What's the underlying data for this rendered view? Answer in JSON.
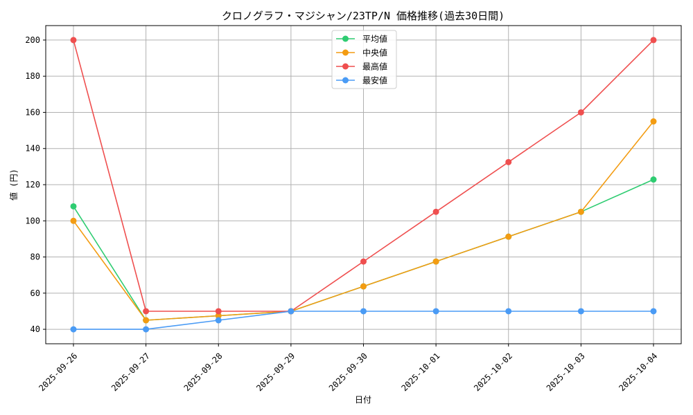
{
  "chart_data": {
    "type": "line",
    "title": "クロノグラフ・マジシャン/23TP/N 価格推移(過去30日間)",
    "xlabel": "日付",
    "ylabel": "値 (円)",
    "categories": [
      "2025-09-26",
      "2025-09-27",
      "2025-09-28",
      "2025-09-29",
      "2025-09-30",
      "2025-10-01",
      "2025-10-02",
      "2025-10-03",
      "2025-10-04"
    ],
    "ylim": [
      32,
      208
    ],
    "yticks": [
      40,
      60,
      80,
      100,
      120,
      140,
      160,
      180,
      200
    ],
    "grid": true,
    "legend_position": "top-center",
    "series": [
      {
        "name": "平均値",
        "color": "#2ecc71",
        "values": [
          108,
          45,
          47.5,
          50,
          63.75,
          77.5,
          91.25,
          105,
          122.86
        ]
      },
      {
        "name": "中央値",
        "color": "#f39c12",
        "values": [
          100,
          45,
          47.5,
          50,
          63.75,
          77.5,
          91.25,
          105,
          155
        ]
      },
      {
        "name": "最高値",
        "color": "#ef4f4f",
        "values": [
          200,
          50,
          50,
          50,
          77.5,
          105,
          132.5,
          160,
          200
        ]
      },
      {
        "name": "最安値",
        "color": "#4a9bf5",
        "values": [
          40,
          40,
          45,
          50,
          50,
          50,
          50,
          50,
          50
        ]
      }
    ]
  }
}
